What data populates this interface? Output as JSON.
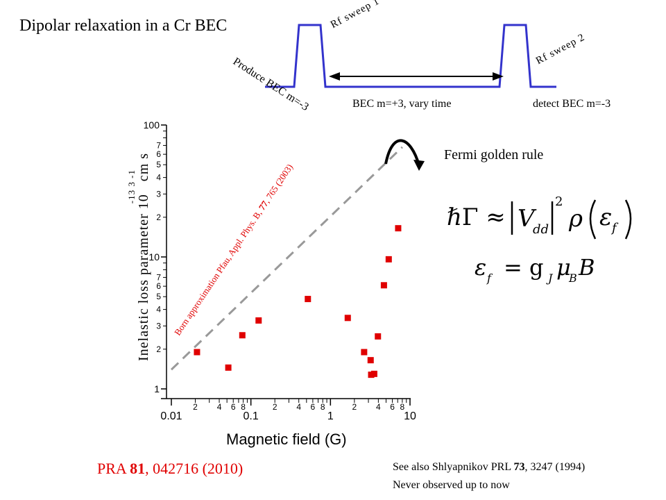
{
  "title": "Dipolar relaxation in a Cr BEC",
  "sequence": {
    "produce_label": "Produce BEC m=-3",
    "rf1_label": "Rf sweep 1",
    "rf2_label": "Rf sweep 2",
    "hold_label": "BEC m=+3, vary time",
    "detect_label": "detect BEC m=-3"
  },
  "fermi_label": "Fermi golden rule",
  "formula": {
    "line1_lhs": "ℏΓ ≈",
    "line1_v": "V",
    "line1_v_sub": "dd",
    "line1_sq": "2",
    "line1_rho": "ρ",
    "line1_eps": "ε",
    "line1_eps_sub": "f",
    "line2_eps": "ε",
    "line2_eps_sub": "f",
    "line2_rhs_g": "= g",
    "line2_sub_j": "J",
    "line2_mu": "μ",
    "line2_sub_b": "B",
    "line2_b": "B"
  },
  "reference": {
    "prefix": "PRA ",
    "volume": "81",
    "suffix": ", 042716 (2010)"
  },
  "see_also": {
    "prefix": "See also Shlyapnikov PRL ",
    "volume": "73",
    "suffix": ", 3247 (1994)"
  },
  "never_observed": "Never observed up to now",
  "colors": {
    "data": "#e00000",
    "pulse": "#3333cc",
    "guide": "#999999",
    "annotation": "#e00000"
  },
  "chart_data": {
    "type": "scatter",
    "xlabel": "Magnetic field (G)",
    "ylabel_main": "Inelastic loss parameter",
    "ylabel_unit": "10   cm s",
    "ylabel_exp": "-13    3  -1",
    "x_scale": "log",
    "y_scale": "log",
    "xlim": [
      0.01,
      10
    ],
    "ylim": [
      1,
      100
    ],
    "x_major_ticks": [
      {
        "value": 0.01,
        "label": "0.01"
      },
      {
        "value": 0.1,
        "label": "0.1"
      },
      {
        "value": 1,
        "label": "1"
      },
      {
        "value": 10,
        "label": "10"
      }
    ],
    "x_minor_labels": [
      "2",
      "4",
      "6",
      "8"
    ],
    "y_major_ticks": [
      {
        "value": 1,
        "label": "1"
      },
      {
        "value": 10,
        "label": "10"
      },
      {
        "value": 100,
        "label": "100"
      }
    ],
    "y_minor_labels": [
      "2",
      "3",
      "4",
      "5",
      "6",
      "7"
    ],
    "guide_line": {
      "label_normal": "Born approximation ",
      "label_red": "Pfau, Appl. Phys. B, ",
      "label_bold": "77",
      "label_tail": ", 765 (2003)",
      "x": [
        0.01,
        8
      ],
      "y": [
        1.4,
        68
      ]
    },
    "series": [
      {
        "values": [
          {
            "x": 0.021,
            "y": 1.9
          },
          {
            "x": 0.052,
            "y": 1.45
          },
          {
            "x": 0.078,
            "y": 2.55
          },
          {
            "x": 0.125,
            "y": 3.3
          },
          {
            "x": 0.52,
            "y": 4.8
          },
          {
            "x": 1.65,
            "y": 3.45
          },
          {
            "x": 2.65,
            "y": 1.9
          },
          {
            "x": 3.2,
            "y": 1.65
          },
          {
            "x": 3.25,
            "y": 1.28
          },
          {
            "x": 3.55,
            "y": 1.3
          },
          {
            "x": 3.95,
            "y": 2.5
          },
          {
            "x": 4.7,
            "y": 6.1
          },
          {
            "x": 5.4,
            "y": 9.6
          },
          {
            "x": 7.1,
            "y": 16.5
          }
        ]
      }
    ]
  }
}
